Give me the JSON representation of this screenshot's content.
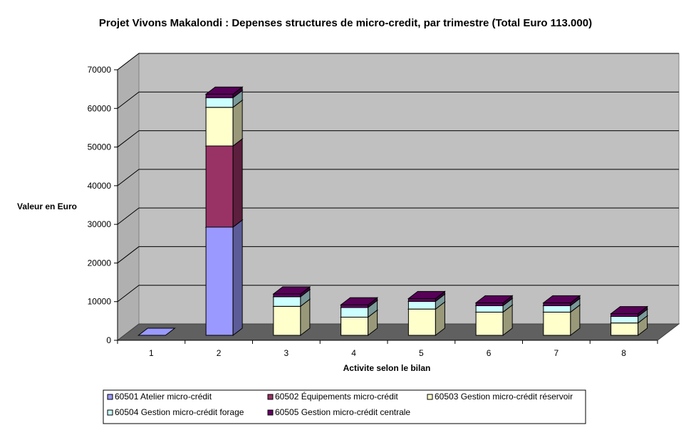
{
  "chart_data": {
    "type": "bar",
    "stacked": true,
    "three_d": true,
    "title": "Projet Vivons Makalondi : Depenses structures de micro-credit, par trimestre (Total Euro 113.000)",
    "xlabel": "Activite selon le bilan",
    "ylabel": "Valeur en Euro",
    "ylim": [
      0,
      70000
    ],
    "yticks": [
      "0",
      "10000",
      "20000",
      "30000",
      "40000",
      "50000",
      "60000",
      "70000"
    ],
    "yticks_values": [
      0,
      10000,
      20000,
      30000,
      40000,
      50000,
      60000,
      70000
    ],
    "categories": [
      "1",
      "2",
      "3",
      "4",
      "5",
      "6",
      "7",
      "8"
    ],
    "grid": true,
    "legend_position": "bottom",
    "series": [
      {
        "name": "60501 Atelier micro-crédit",
        "color": "#9999ff",
        "values": [
          0,
          28000,
          0,
          0,
          0,
          0,
          0,
          0
        ]
      },
      {
        "name": "60502 Équipements micro-crédit",
        "color": "#993366",
        "values": [
          0,
          21000,
          0,
          0,
          0,
          0,
          0,
          0
        ]
      },
      {
        "name": "60503 Gestion micro-crédit réservoir",
        "color": "#ffffcc",
        "values": [
          0,
          10000,
          7500,
          4700,
          6800,
          6000,
          6000,
          3200
        ]
      },
      {
        "name": "60504 Gestion micro-crédit forage",
        "color": "#ccffff",
        "values": [
          0,
          2500,
          2500,
          2500,
          2000,
          1700,
          1700,
          1700
        ]
      },
      {
        "name": "60505 Gestion micro-crédit centrale",
        "color": "#660066",
        "values": [
          0,
          900,
          700,
          700,
          700,
          700,
          700,
          700
        ]
      }
    ]
  }
}
